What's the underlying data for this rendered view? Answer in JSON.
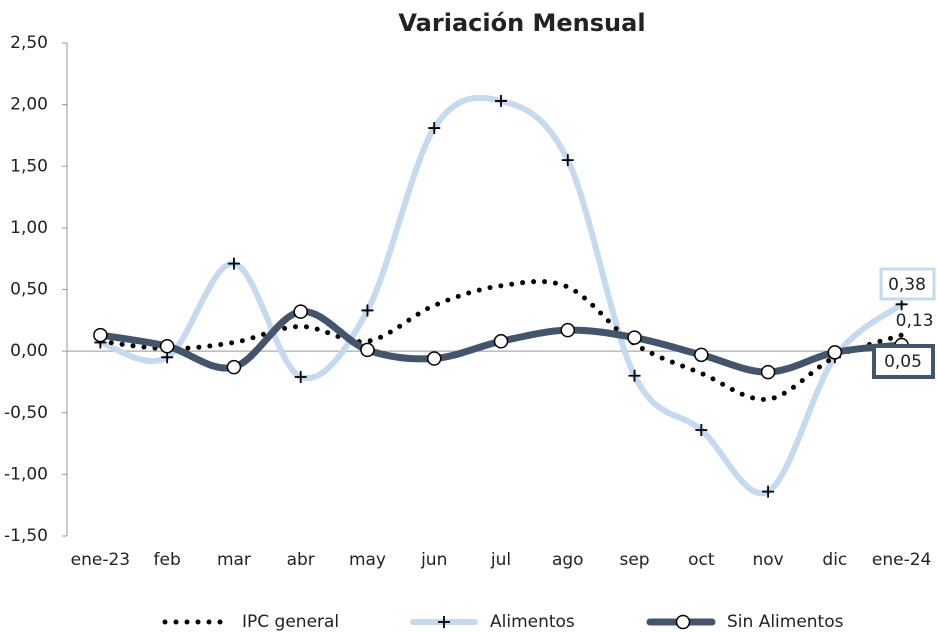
{
  "chart_data": {
    "type": "line",
    "title": "Variación Mensual",
    "categories": [
      "ene-23",
      "feb",
      "mar",
      "abr",
      "may",
      "jun",
      "jul",
      "ago",
      "sep",
      "oct",
      "nov",
      "dic",
      "ene-24"
    ],
    "ylim": [
      -1.5,
      2.5
    ],
    "yticks": [
      {
        "value": -1.5,
        "label": "-1,50"
      },
      {
        "value": -1,
        "label": "-1,00"
      },
      {
        "value": -0.5,
        "label": "-0,50"
      },
      {
        "value": 0,
        "label": "0,00"
      },
      {
        "value": 0.5,
        "label": "0,50"
      },
      {
        "value": 1,
        "label": "1,00"
      },
      {
        "value": 1.5,
        "label": "1,50"
      },
      {
        "value": 2,
        "label": "2,00"
      },
      {
        "value": 2.5,
        "label": "2,50"
      }
    ],
    "legend": "bottom",
    "series": [
      {
        "name": "IPC general",
        "color": "#000000",
        "style": "dotted",
        "values": [
          0.08,
          0.02,
          0.07,
          0.2,
          0.08,
          0.37,
          0.53,
          0.52,
          0.06,
          -0.18,
          -0.39,
          -0.05,
          0.13
        ],
        "value_labels": [
          null,
          null,
          null,
          null,
          null,
          null,
          null,
          null,
          null,
          null,
          null,
          null,
          "0,13"
        ]
      },
      {
        "name": "Alimentos",
        "color": "#c5d9ef",
        "style": "plus",
        "values": [
          0.07,
          -0.05,
          0.71,
          -0.21,
          0.33,
          1.81,
          2.03,
          1.55,
          -0.2,
          -0.64,
          -1.14,
          -0.05,
          0.38
        ],
        "value_labels": [
          null,
          null,
          null,
          null,
          null,
          null,
          null,
          null,
          null,
          null,
          null,
          null,
          "0,38"
        ]
      },
      {
        "name": "Sin Alimentos",
        "color": "#44546a",
        "style": "circle",
        "values": [
          0.13,
          0.04,
          -0.13,
          0.32,
          0.01,
          -0.06,
          0.08,
          0.17,
          0.11,
          -0.03,
          -0.17,
          -0.01,
          0.05
        ],
        "value_labels": [
          null,
          null,
          null,
          null,
          null,
          null,
          null,
          null,
          null,
          null,
          null,
          null,
          "0,05"
        ]
      }
    ]
  }
}
